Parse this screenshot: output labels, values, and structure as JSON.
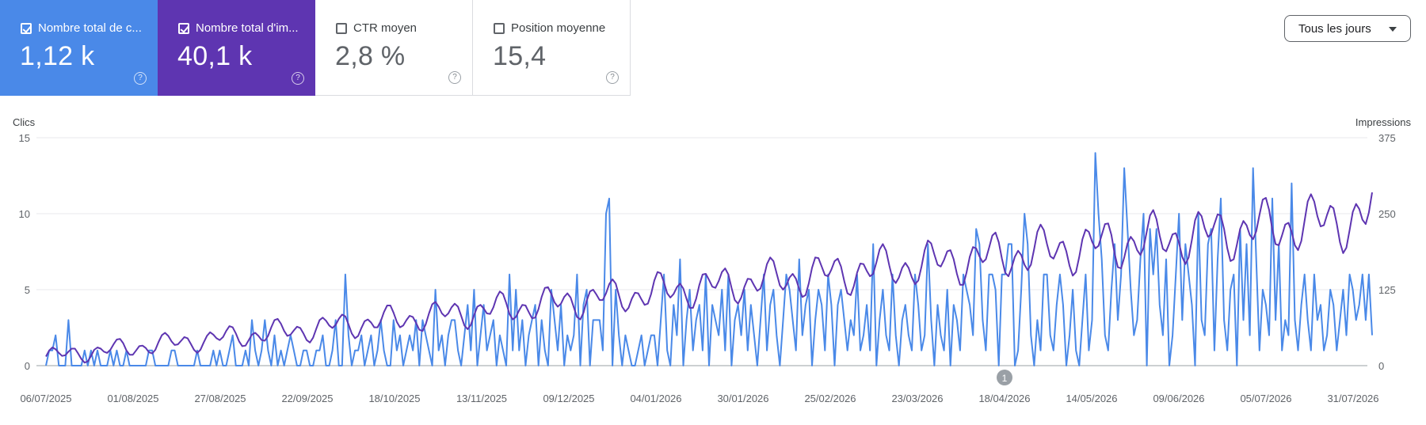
{
  "tiles": [
    {
      "label": "Nombre total de c...",
      "value": "1,12 k",
      "checked": true,
      "help": "?"
    },
    {
      "label": "Nombre total d'im...",
      "value": "40,1 k",
      "checked": true,
      "help": "?"
    },
    {
      "label": "CTR moyen",
      "value": "2,8 %",
      "checked": false,
      "help": "?"
    },
    {
      "label": "Position moyenne",
      "value": "15,4",
      "checked": false,
      "help": "?"
    }
  ],
  "filter": {
    "label": "Tous les jours",
    "icon": "caret-down-icon"
  },
  "colors": {
    "clicks": "#4a89e8",
    "impressions": "#5e35b1",
    "grid": "#e8eaed",
    "baseline": "#9aa0a6",
    "annotation": "#9aa0a6"
  },
  "chart_data": {
    "type": "line",
    "y_left": {
      "label": "Clics",
      "ticks": [
        "15",
        "10",
        "5",
        "0"
      ],
      "ylim": [
        0,
        15
      ]
    },
    "y_right": {
      "label": "Impressions",
      "ticks": [
        "375",
        "250",
        "125",
        "0"
      ],
      "ylim": [
        0,
        375
      ]
    },
    "x_ticks": [
      "06/07/2025",
      "01/08/2025",
      "27/08/2025",
      "22/09/2025",
      "18/10/2025",
      "13/11/2025",
      "09/12/2025",
      "04/01/2026",
      "30/01/2026",
      "25/02/2026",
      "23/03/2026",
      "18/04/2026",
      "14/05/2026",
      "09/06/2026",
      "05/07/2026",
      "31/07/2026"
    ],
    "annotation": {
      "label": "1",
      "date": "18/04/2026"
    },
    "grid": true,
    "series": [
      {
        "name": "Clics",
        "axis": "left",
        "color": "#4a89e8",
        "values": [
          0,
          1,
          1,
          2,
          0,
          0,
          0,
          3,
          0,
          0,
          0,
          0,
          1,
          0,
          1,
          0,
          1,
          0,
          0,
          0,
          1,
          0,
          1,
          0,
          0,
          1,
          0,
          0,
          0,
          0,
          0,
          0,
          1,
          1,
          0,
          0,
          0,
          0,
          0,
          1,
          1,
          0,
          0,
          0,
          0,
          0,
          0,
          1,
          0,
          0,
          0,
          0,
          1,
          0,
          1,
          0,
          0,
          1,
          2,
          0,
          0,
          0,
          1,
          0,
          3,
          1,
          0,
          1,
          3,
          1,
          0,
          2,
          0,
          1,
          0,
          1,
          2,
          1,
          0,
          0,
          1,
          1,
          0,
          0,
          1,
          1,
          2,
          0,
          0,
          1,
          3,
          0,
          0,
          6,
          2,
          0,
          1,
          1,
          2,
          0,
          1,
          2,
          0,
          1,
          3,
          1,
          0,
          0,
          3,
          1,
          2,
          0,
          1,
          2,
          1,
          3,
          0,
          3,
          2,
          1,
          0,
          5,
          1,
          2,
          0,
          2,
          3,
          3,
          1,
          0,
          2,
          4,
          1,
          5,
          0,
          2,
          4,
          1,
          2,
          3,
          0,
          2,
          1,
          0,
          6,
          1,
          5,
          1,
          3,
          0,
          2,
          3,
          4,
          0,
          3,
          1,
          0,
          5,
          3,
          1,
          4,
          0,
          2,
          1,
          2,
          6,
          0,
          4,
          5,
          0,
          3,
          3,
          3,
          1,
          10,
          11,
          0,
          5,
          2,
          0,
          2,
          1,
          0,
          0,
          1,
          2,
          0,
          1,
          2,
          2,
          0,
          3,
          6,
          1,
          0,
          4,
          2,
          7,
          0,
          3,
          5,
          1,
          3,
          4,
          1,
          6,
          0,
          4,
          3,
          2,
          5,
          1,
          6,
          0,
          3,
          4,
          2,
          5,
          1,
          4,
          2,
          0,
          3,
          6,
          1,
          4,
          5,
          2,
          0,
          3,
          6,
          5,
          3,
          1,
          7,
          2,
          4,
          5,
          0,
          3,
          5,
          4,
          1,
          6,
          4,
          0,
          4,
          5,
          3,
          1,
          3,
          2,
          6,
          1,
          2,
          4,
          1,
          8,
          0,
          3,
          5,
          2,
          1,
          6,
          2,
          0,
          3,
          4,
          2,
          1,
          6,
          4,
          1,
          2,
          8,
          3,
          0,
          4,
          2,
          1,
          5,
          0,
          4,
          3,
          1,
          6,
          5,
          4,
          2,
          9,
          8,
          3,
          1,
          6,
          6,
          5,
          0,
          6,
          6,
          8,
          8,
          0,
          1,
          5,
          10,
          8,
          2,
          0,
          3,
          1,
          6,
          6,
          2,
          1,
          4,
          6,
          4,
          0,
          2,
          5,
          1,
          0,
          3,
          6,
          1,
          3,
          14,
          10,
          7,
          2,
          1,
          5,
          8,
          3,
          6,
          13,
          9,
          5,
          2,
          3,
          7,
          10,
          0,
          9,
          6,
          9,
          4,
          2,
          7,
          0,
          2,
          6,
          10,
          3,
          8,
          6,
          4,
          0,
          10,
          3,
          2,
          8,
          9,
          1,
          7,
          11,
          3,
          1,
          5,
          6,
          0,
          9,
          3,
          8,
          2,
          13,
          7,
          1,
          5,
          4,
          2,
          11,
          3,
          8,
          1,
          3,
          2,
          12,
          3,
          1,
          4,
          6,
          3,
          1,
          6,
          3,
          4,
          1,
          2,
          5,
          4,
          1,
          3,
          5,
          2,
          6,
          5,
          3,
          4,
          6,
          3,
          6,
          2
        ],
        "__note_skip": true
      }
    ]
  }
}
